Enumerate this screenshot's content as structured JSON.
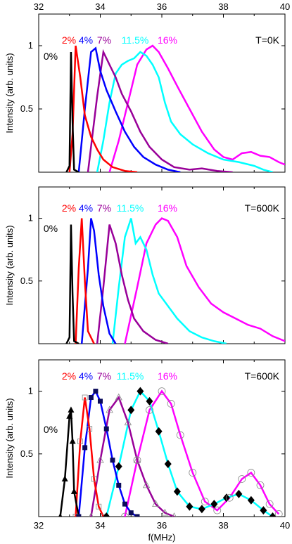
{
  "chart_data": [
    {
      "type": "line",
      "xlim": [
        32,
        40
      ],
      "ylim": [
        0,
        1.25
      ],
      "xticks": [
        "32",
        "34",
        "36",
        "38",
        "40"
      ],
      "yticks": [
        "0.5",
        "1"
      ],
      "ylabel": "Intensity (arb. units)",
      "annotation": "T=0K",
      "series": [
        {
          "name": "0%",
          "color": "#000000",
          "x": [
            32.9,
            33.0,
            33.05,
            33.1,
            33.15,
            33.3
          ],
          "y": [
            0,
            0.05,
            0.95,
            0.4,
            0.02,
            0
          ]
        },
        {
          "name": "2%",
          "color": "#ff0000",
          "x": [
            33.0,
            33.1,
            33.2,
            33.35,
            33.5,
            33.7,
            33.9,
            34.1,
            34.4,
            34.8,
            35.2
          ],
          "y": [
            0,
            0.3,
            1.0,
            0.75,
            0.45,
            0.28,
            0.18,
            0.1,
            0.04,
            0.01,
            0
          ]
        },
        {
          "name": "4%",
          "color": "#0000ff",
          "x": [
            33.3,
            33.5,
            33.7,
            33.85,
            34.0,
            34.2,
            34.5,
            34.8,
            35.1,
            35.4,
            35.8,
            36.2,
            36.6
          ],
          "y": [
            0,
            0.5,
            0.95,
            0.98,
            0.8,
            0.65,
            0.48,
            0.32,
            0.2,
            0.12,
            0.06,
            0.02,
            0
          ]
        },
        {
          "name": "7%",
          "color": "#990099",
          "x": [
            33.6,
            33.9,
            34.1,
            34.3,
            34.5,
            34.7,
            35.0,
            35.3,
            35.6,
            36.0,
            36.4,
            36.9,
            37.3,
            37.8,
            38.3
          ],
          "y": [
            0,
            0.6,
            0.95,
            0.85,
            0.75,
            0.62,
            0.48,
            0.32,
            0.2,
            0.1,
            0.04,
            0.02,
            0.03,
            0.01,
            0
          ]
        },
        {
          "name": "11.5%",
          "color": "#00ffff",
          "x": [
            33.9,
            34.1,
            34.3,
            34.5,
            34.7,
            34.9,
            35.1,
            35.3,
            35.5,
            35.7,
            35.9,
            36.1,
            36.3,
            36.6,
            37.0,
            37.5,
            38.0,
            38.5,
            39.0,
            39.3,
            39.6
          ],
          "y": [
            0,
            0.25,
            0.55,
            0.78,
            0.85,
            0.88,
            0.9,
            0.95,
            0.92,
            0.85,
            0.75,
            0.55,
            0.4,
            0.3,
            0.22,
            0.15,
            0.1,
            0.08,
            0.05,
            0.02,
            0
          ]
        },
        {
          "name": "16%",
          "color": "#ff00ff",
          "x": [
            34.3,
            34.6,
            34.9,
            35.2,
            35.5,
            35.7,
            35.9,
            36.2,
            36.5,
            36.9,
            37.3,
            37.7,
            38.0,
            38.3,
            38.6,
            38.9,
            39.2,
            39.5,
            39.8,
            40.0
          ],
          "y": [
            0,
            0.25,
            0.55,
            0.85,
            0.97,
            1.0,
            0.95,
            0.82,
            0.68,
            0.5,
            0.32,
            0.18,
            0.12,
            0.1,
            0.15,
            0.16,
            0.13,
            0.12,
            0.08,
            0.06
          ]
        }
      ]
    },
    {
      "type": "line",
      "xlim": [
        32,
        40
      ],
      "ylim": [
        0,
        1.25
      ],
      "xticks": [
        "32",
        "34",
        "36",
        "38",
        "40"
      ],
      "yticks": [
        "0.5",
        "1"
      ],
      "ylabel": "Intensity (arb. units)",
      "annotation": "T=600K",
      "series": [
        {
          "name": "0%",
          "color": "#000000",
          "x": [
            32.9,
            33.0,
            33.05,
            33.1,
            33.15,
            33.3
          ],
          "y": [
            0,
            0.05,
            0.95,
            0.4,
            0.02,
            0
          ]
        },
        {
          "name": "2%",
          "color": "#ff0000",
          "x": [
            33.2,
            33.3,
            33.4,
            33.5,
            33.6,
            33.8
          ],
          "y": [
            0,
            0.6,
            1.0,
            0.5,
            0.1,
            0
          ]
        },
        {
          "name": "4%",
          "color": "#0000ff",
          "x": [
            33.4,
            33.6,
            33.7,
            33.8,
            33.95,
            34.1,
            34.3,
            34.5
          ],
          "y": [
            0,
            0.6,
            1.0,
            0.9,
            0.55,
            0.3,
            0.08,
            0
          ]
        },
        {
          "name": "7%",
          "color": "#990099",
          "x": [
            33.9,
            34.1,
            34.3,
            34.5,
            34.7,
            34.9,
            35.1,
            35.4,
            35.8,
            36.2
          ],
          "y": [
            0,
            0.45,
            0.95,
            0.8,
            0.55,
            0.35,
            0.2,
            0.1,
            0.03,
            0
          ]
        },
        {
          "name": "11.5%",
          "color": "#00ffff",
          "x": [
            34.4,
            34.6,
            34.8,
            35.0,
            35.15,
            35.3,
            35.5,
            35.7,
            35.9,
            36.2,
            36.5,
            36.9,
            37.3,
            37.7,
            38.1
          ],
          "y": [
            0,
            0.45,
            0.85,
            1.0,
            0.8,
            0.85,
            0.75,
            0.55,
            0.4,
            0.3,
            0.2,
            0.1,
            0.05,
            0.02,
            0
          ]
        },
        {
          "name": "16%",
          "color": "#ff00ff",
          "x": [
            34.8,
            35.2,
            35.5,
            35.8,
            36.0,
            36.2,
            36.5,
            36.8,
            37.2,
            37.6,
            38.0,
            38.4,
            38.8,
            39.2,
            39.6,
            40.0
          ],
          "y": [
            0,
            0.45,
            0.8,
            0.95,
            1.0,
            0.98,
            0.85,
            0.62,
            0.45,
            0.32,
            0.25,
            0.2,
            0.15,
            0.12,
            0.06,
            0.02
          ]
        }
      ]
    },
    {
      "type": "line",
      "xlim": [
        32,
        40
      ],
      "ylim": [
        0,
        1.25
      ],
      "xticks": [
        "32",
        "34",
        "36",
        "38",
        "40"
      ],
      "yticks": [
        "0.5",
        "1"
      ],
      "xlabel": "f(MHz)",
      "ylabel": "Intensity (arb. units)",
      "annotation": "T=600K",
      "series": [
        {
          "name": "0%",
          "color": "#000000",
          "marker": "triangle",
          "markerColor": "#000000",
          "x": [
            32.7,
            32.85,
            33.0,
            33.05,
            33.1,
            33.15,
            33.3
          ],
          "y": [
            0,
            0.3,
            0.8,
            0.85,
            0.6,
            0.2,
            0
          ]
        },
        {
          "name": "2%",
          "color": "#ff0000",
          "marker": "square-open",
          "markerColor": "#888888",
          "x": [
            33.2,
            33.35,
            33.5,
            33.65,
            33.8,
            33.95,
            34.1
          ],
          "y": [
            0,
            0.6,
            0.95,
            0.7,
            0.3,
            0.08,
            0
          ]
        },
        {
          "name": "4%",
          "color": "#0000ff",
          "marker": "square",
          "markerColor": "#0b0b5a",
          "x": [
            33.3,
            33.5,
            33.7,
            33.85,
            34.0,
            34.2,
            34.4,
            34.6,
            34.8,
            35.0,
            35.2
          ],
          "y": [
            0,
            0.55,
            0.95,
            1.0,
            0.92,
            0.7,
            0.45,
            0.25,
            0.1,
            0.03,
            0
          ]
        },
        {
          "name": "7%",
          "color": "#990099",
          "marker": "triangle-open",
          "markerColor": "#888888",
          "x": [
            33.7,
            34.0,
            34.3,
            34.6,
            34.9,
            35.2,
            35.5,
            35.8,
            36.1,
            36.4
          ],
          "y": [
            0,
            0.45,
            0.85,
            0.95,
            0.75,
            0.45,
            0.25,
            0.1,
            0.03,
            0
          ]
        },
        {
          "name": "11.5%",
          "color": "#00ffff",
          "marker": "diamond",
          "markerColor": "#000000",
          "x": [
            34.2,
            34.6,
            35.0,
            35.3,
            35.6,
            35.9,
            36.2,
            36.5,
            36.9,
            37.3,
            37.7,
            38.1,
            38.5,
            38.9,
            39.3,
            39.6
          ],
          "y": [
            0,
            0.4,
            0.85,
            1.0,
            0.92,
            0.68,
            0.42,
            0.2,
            0.08,
            0.06,
            0.1,
            0.15,
            0.18,
            0.13,
            0.05,
            0
          ]
        },
        {
          "name": "16%",
          "color": "#ff00ff",
          "marker": "circle-open",
          "markerColor": "#888888",
          "x": [
            34.8,
            35.2,
            35.6,
            36.0,
            36.3,
            36.6,
            37.0,
            37.4,
            37.8,
            38.2,
            38.6,
            38.9,
            39.2,
            39.5,
            39.8
          ],
          "y": [
            0,
            0.45,
            0.85,
            1.0,
            0.9,
            0.65,
            0.35,
            0.12,
            0.05,
            0.15,
            0.3,
            0.35,
            0.25,
            0.1,
            0.02
          ]
        }
      ]
    }
  ]
}
